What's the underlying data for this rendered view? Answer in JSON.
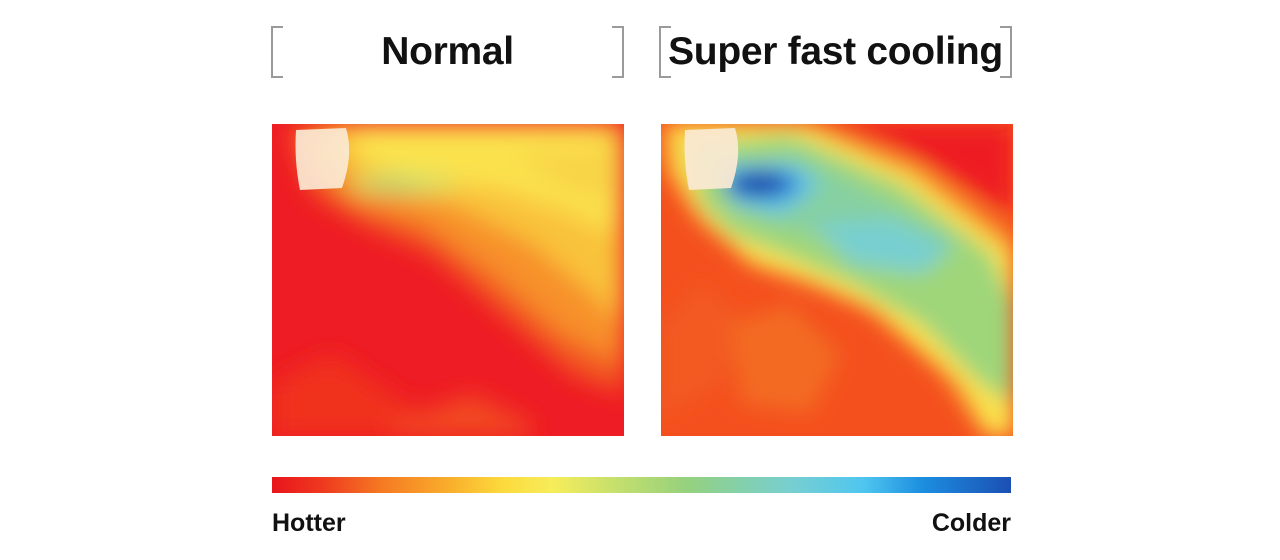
{
  "headings": {
    "normal": "Normal",
    "super_fast": "Super fast cooling"
  },
  "legend": {
    "hot_label": "Hotter",
    "cold_label": "Colder",
    "gradient_colors": [
      "#e8151c",
      "#f57b23",
      "#fcd93c",
      "#96d17d",
      "#78cfd0",
      "#4fc6ef",
      "#1b4fb3"
    ]
  },
  "colors": {
    "red": "#ee1c24",
    "orange_red": "#f4501e",
    "orange": "#f7902b",
    "yellow": "#fbe24d",
    "green": "#9fd67a",
    "light_blue": "#61c5ea",
    "dark_blue": "#1e3fa3",
    "vent": "#fbe9d4"
  }
}
